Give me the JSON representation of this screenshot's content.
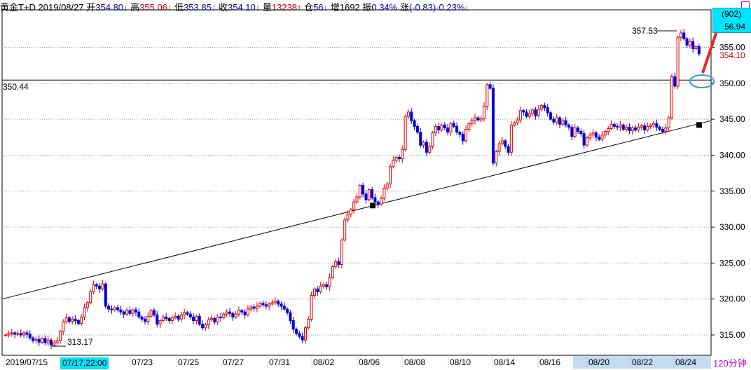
{
  "header": {
    "instrument": "黄金T+D",
    "date": "2019/08/27",
    "open_label": "开",
    "open_value": "354.80↓",
    "high_label": "高",
    "high_value": "355.06↓",
    "low_label": "低",
    "low_value": "353.85↓",
    "close_label": "收",
    "close_value": "354.10↓",
    "volume_label": "量",
    "volume_value": "13238↑",
    "oi_label": "仓",
    "oi_value": "56↓",
    "inc_label": "增",
    "inc_value": "1692",
    "amp_label": "振",
    "amp_value": "0.34%",
    "chg_label": "涨",
    "chg_value": "(-0.83)-0.23%↓"
  },
  "right_box": {
    "count": "(902)",
    "price": "56.94"
  },
  "cursor_label": "07/17,22:00",
  "period_label": "120分钟",
  "annotations": {
    "high_tag": "357.53",
    "last_tag": "354.10",
    "low_tag": "313.17",
    "hline_tag": "350.44"
  },
  "chart_data": {
    "type": "candlestick",
    "ylim": [
      313,
      358
    ],
    "y_ticks": [
      315,
      320,
      325,
      330,
      335,
      340,
      345,
      350,
      355
    ],
    "x_ticks": [
      "2019/07/15",
      "07/23",
      "07/25",
      "07/27",
      "07/31",
      "08/02",
      "08/06",
      "08/08",
      "08/10",
      "08/14",
      "08/16",
      "08/20",
      "08/22",
      "08/24"
    ],
    "horizontal_line": 350.44,
    "trendline": {
      "start": 320.0,
      "end": 344.8
    },
    "markers": [
      333.0,
      344.2
    ],
    "colors": {
      "up": "#dd0000",
      "down": "#0000dd",
      "grid": "#999999",
      "highlight": "#c5dbf2",
      "arrow": "#ee2222",
      "ellipse": "#3399dd"
    },
    "closes": [
      315.0,
      315.2,
      315.3,
      315.1,
      315.2,
      315.0,
      315.3,
      315.1,
      314.6,
      314.2,
      314.4,
      314.0,
      314.5,
      313.9,
      314.3,
      313.6,
      313.9,
      314.2,
      315.5,
      316.8,
      317.4,
      316.9,
      317.2,
      317.0,
      316.6,
      317.5,
      318.8,
      319.5,
      321.0,
      322.0,
      321.8,
      321.4,
      322.1,
      319.0,
      318.6,
      318.5,
      318.8,
      318.5,
      318.2,
      317.9,
      318.4,
      318.0,
      318.5,
      318.2,
      317.5,
      317.2,
      316.9,
      317.6,
      318.4,
      317.8,
      316.5,
      317.0,
      317.5,
      317.3,
      317.0,
      317.4,
      317.6,
      317.2,
      317.8,
      318.1,
      317.9,
      317.5,
      317.0,
      317.6,
      316.5,
      316.0,
      316.4,
      317.1,
      317.3,
      316.8,
      317.5,
      317.4,
      317.9,
      318.2,
      318.0,
      317.5,
      317.9,
      318.4,
      318.2,
      317.8,
      318.6,
      318.9,
      318.7,
      319.0,
      319.4,
      319.2,
      319.0,
      319.3,
      319.5,
      319.7,
      319.3,
      319.0,
      318.6,
      318.1,
      317.0,
      315.8,
      315.2,
      314.8,
      314.3,
      316.0,
      317.2,
      320.5,
      321.4,
      321.0,
      321.8,
      322.0,
      321.7,
      323.0,
      324.5,
      325.2,
      324.8,
      328.2,
      331.0,
      331.8,
      332.4,
      333.5,
      334.2,
      335.8,
      334.6,
      333.8,
      335.2,
      334.1,
      333.5,
      333.2,
      334.0,
      335.4,
      336.0,
      338.4,
      339.3,
      339.7,
      339.5,
      340.8,
      345.4,
      346.0,
      344.8,
      344.0,
      343.2,
      341.4,
      341.8,
      340.4,
      341.2,
      343.1,
      344.0,
      343.5,
      344.2,
      343.8,
      343.2,
      344.4,
      344.0,
      343.2,
      342.9,
      342.0,
      343.6,
      344.4,
      344.8,
      345.2,
      344.9,
      345.1,
      346.8,
      349.8,
      349.3,
      338.9,
      340.5,
      341.6,
      342.0,
      341.2,
      340.4,
      344.2,
      344.5,
      344.9,
      346.2,
      346.0,
      345.4,
      345.8,
      346.3,
      345.5,
      346.4,
      346.9,
      346.6,
      345.9,
      345.0,
      344.6,
      345.2,
      344.3,
      344.8,
      344.2,
      343.9,
      342.6,
      343.8,
      343.3,
      343.0,
      341.4,
      342.4,
      342.8,
      343.1,
      342.5,
      342.2,
      342.8,
      343.3,
      343.7,
      344.3,
      344.0,
      343.9,
      344.2,
      343.6,
      343.9,
      343.4,
      343.8,
      343.5,
      343.9,
      344.1,
      343.5,
      344.0,
      344.2,
      344.4,
      343.9,
      343.6,
      343.3,
      343.8,
      345.2,
      350.9,
      349.6,
      356.4,
      357.0,
      356.2,
      355.3,
      355.8,
      354.8,
      355.1,
      354.1
    ]
  }
}
